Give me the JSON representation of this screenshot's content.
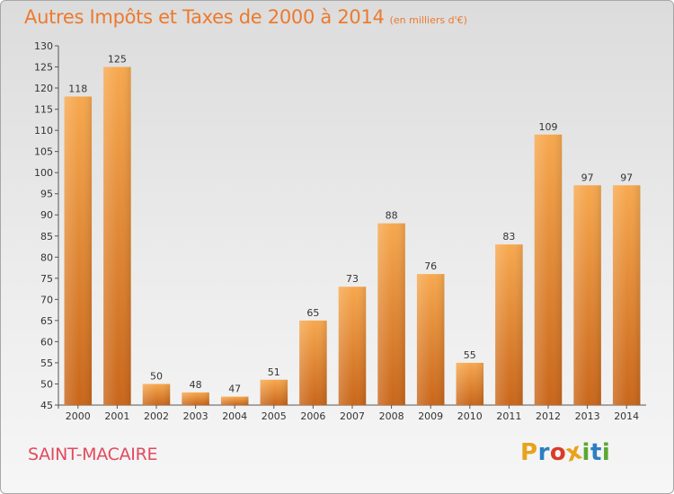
{
  "header": {
    "title": "Autres Impôts et Taxes de 2000 à 2014",
    "subtitle": "(en milliers d'€)"
  },
  "footer": {
    "commune": "SAINT-MACAIRE",
    "logo_letters": [
      "P",
      "r",
      "o",
      "x",
      "i",
      "t",
      "i"
    ],
    "logo_colors": [
      "#e8a21c",
      "#2b7fc1",
      "#d93c2a",
      "#e8a21c",
      "#5aa832",
      "#2b7fc1",
      "#5aa832"
    ]
  },
  "colors": {
    "bar_light": "#f7a84e",
    "bar_dark": "#c9661a",
    "title": "#ec7a2e",
    "commune": "#e24a5e"
  },
  "chart_data": {
    "type": "bar",
    "title": "Autres Impôts et Taxes de 2000 à 2014",
    "subtitle": "(en milliers d'€)",
    "xlabel": "",
    "ylabel": "",
    "categories": [
      "2000",
      "2001",
      "2002",
      "2003",
      "2004",
      "2005",
      "2006",
      "2007",
      "2008",
      "2009",
      "2010",
      "2011",
      "2012",
      "2013",
      "2014"
    ],
    "values": [
      118,
      125,
      50,
      48,
      47,
      51,
      65,
      73,
      88,
      76,
      55,
      83,
      109,
      97,
      97
    ],
    "ylim": [
      45,
      130
    ],
    "yticks": [
      45,
      50,
      55,
      60,
      65,
      70,
      75,
      80,
      85,
      90,
      95,
      100,
      105,
      110,
      115,
      120,
      125,
      130
    ],
    "grid": false,
    "legend": "none",
    "data_labels": true
  }
}
